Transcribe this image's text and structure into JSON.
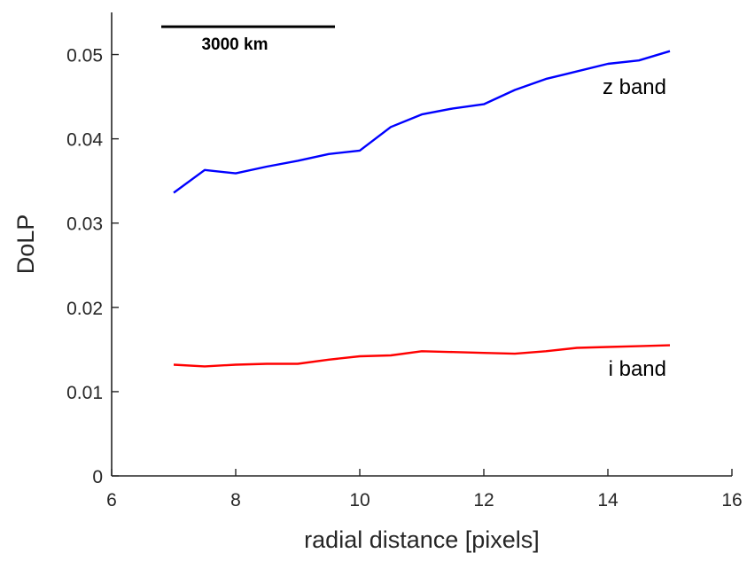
{
  "chart_data": {
    "type": "line",
    "xlabel": "radial distance [pixels]",
    "ylabel": "DoLP",
    "xlim": [
      6,
      16
    ],
    "ylim": [
      0,
      0.055
    ],
    "xticks": [
      "6",
      "8",
      "10",
      "12",
      "14",
      "16"
    ],
    "yticks": [
      "0",
      "0.01",
      "0.02",
      "0.03",
      "0.04",
      "0.05"
    ],
    "grid": false,
    "legend": "none",
    "series": [
      {
        "name": "z band",
        "color": "#0000ff",
        "x": [
          7,
          7.5,
          8,
          8.5,
          9,
          9.5,
          10,
          10.5,
          11,
          11.5,
          12,
          12.5,
          13,
          13.5,
          14,
          14.5,
          15
        ],
        "values": [
          0.0336,
          0.0363,
          0.0359,
          0.0367,
          0.0374,
          0.0382,
          0.0386,
          0.0414,
          0.0429,
          0.0436,
          0.0441,
          0.0458,
          0.0471,
          0.048,
          0.0489,
          0.0493,
          0.0504
        ]
      },
      {
        "name": "i band",
        "color": "#ff0000",
        "x": [
          7,
          7.5,
          8,
          8.5,
          9,
          9.5,
          10,
          10.5,
          11,
          11.5,
          12,
          12.5,
          13,
          13.5,
          14,
          14.5,
          15
        ],
        "values": [
          0.0132,
          0.013,
          0.0132,
          0.0133,
          0.0133,
          0.0138,
          0.0142,
          0.0143,
          0.0148,
          0.0147,
          0.0146,
          0.0145,
          0.0148,
          0.0152,
          0.0153,
          0.0154,
          0.0155
        ]
      }
    ],
    "scale_bar": {
      "label": "3000 km",
      "x_start": 6.8,
      "x_end": 9.6,
      "y": 0.0533
    }
  }
}
